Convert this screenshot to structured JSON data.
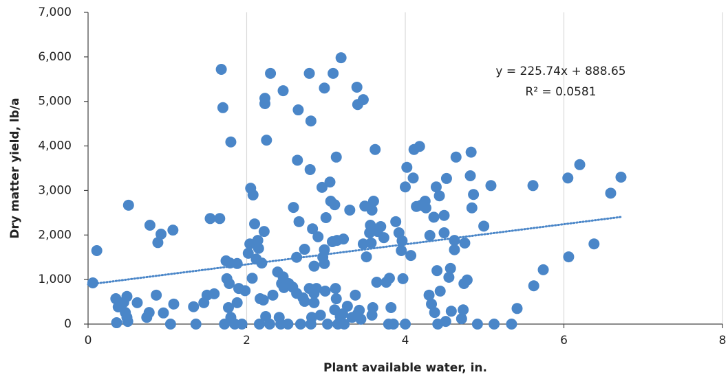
{
  "chart_data": {
    "type": "scatter",
    "x_label": "Plant available water, in.",
    "y_label": "Dry matter yield, lb/a",
    "color": "#4a86c8",
    "xlim": [
      0,
      8
    ],
    "xticks": [
      0,
      2,
      4,
      6,
      8
    ],
    "ylim": [
      0,
      7000
    ],
    "yticks": [
      0,
      {
        "value": 1000,
        "label": "1,000"
      },
      {
        "value": 2000,
        "label": "2,000"
      },
      {
        "value": 3000,
        "label": "3,000"
      },
      {
        "value": 4000,
        "label": "4,000"
      },
      {
        "value": 5000,
        "label": "5,000"
      },
      {
        "value": 6000,
        "label": "6,000"
      },
      {
        "value": 7000,
        "label": "7,000"
      }
    ],
    "grid": "x",
    "trendline": {
      "equation": "y = 225.74x + 888.65",
      "r_squared": "R² = 0.0581",
      "slope": 225.74,
      "intercept": 888.65
    },
    "x": [
      0.06,
      0.11,
      0.35,
      0.36,
      0.38,
      0.45,
      0.47,
      0.49,
      0.49,
      0.51,
      0.5,
      0.62,
      0.74,
      0.77,
      0.78,
      0.86,
      0.88,
      0.92,
      0.95,
      1.04,
      1.07,
      1.08,
      1.33,
      1.36,
      1.46,
      1.5,
      1.54,
      1.59,
      1.66,
      1.68,
      1.7,
      1.72,
      1.74,
      1.75,
      1.77,
      1.78,
      1.79,
      1.8,
      1.8,
      1.85,
      1.88,
      1.88,
      1.9,
      1.94,
      1.98,
      2.02,
      2.04,
      2.05,
      2.08,
      2.07,
      2.1,
      2.12,
      2.14,
      2.15,
      2.16,
      2.17,
      2.19,
      2.21,
      2.22,
      2.23,
      2.23,
      2.24,
      2.25,
      2.29,
      2.3,
      2.33,
      2.39,
      2.41,
      2.43,
      2.44,
      2.46,
      2.46,
      2.47,
      2.52,
      2.53,
      2.58,
      2.59,
      2.63,
      2.63,
      2.64,
      2.65,
      2.66,
      2.68,
      2.71,
      2.73,
      2.73,
      2.79,
      2.79,
      2.8,
      2.81,
      2.81,
      2.82,
      2.83,
      2.85,
      2.85,
      2.85,
      2.88,
      2.9,
      2.93,
      2.95,
      2.96,
      2.98,
      2.98,
      2.98,
      2.99,
      3.0,
      3.02,
      3.05,
      3.06,
      3.08,
      3.09,
      3.11,
      3.11,
      3.12,
      3.13,
      3.13,
      3.14,
      3.15,
      3.18,
      3.19,
      3.21,
      3.22,
      3.23,
      3.27,
      3.3,
      3.33,
      3.37,
      3.39,
      3.4,
      3.4,
      3.42,
      3.44,
      3.47,
      3.47,
      3.49,
      3.51,
      3.55,
      3.56,
      3.57,
      3.58,
      3.58,
      3.59,
      3.6,
      3.62,
      3.64,
      3.65,
      3.69,
      3.73,
      3.76,
      3.79,
      3.8,
      3.82,
      3.85,
      3.88,
      3.92,
      3.95,
      3.96,
      3.97,
      4.0,
      4.0,
      4.02,
      4.07,
      4.1,
      4.11,
      4.14,
      4.18,
      4.2,
      4.25,
      4.26,
      4.3,
      4.31,
      4.33,
      4.36,
      4.37,
      4.39,
      4.4,
      4.41,
      4.43,
      4.44,
      4.49,
      4.49,
      4.51,
      4.52,
      4.55,
      4.57,
      4.58,
      4.62,
      4.62,
      4.64,
      4.71,
      4.73,
      4.74,
      4.75,
      4.78,
      4.82,
      4.83,
      4.84,
      4.86,
      4.91,
      4.99,
      5.08,
      5.12,
      5.34,
      5.41,
      5.61,
      5.62,
      5.74,
      6.05,
      6.06,
      6.2,
      6.38,
      6.59,
      6.72
    ],
    "values": [
      925,
      1650,
      570,
      30,
      385,
      490,
      260,
      150,
      620,
      2670,
      60,
      480,
      150,
      260,
      2220,
      650,
      1830,
      2020,
      250,
      0,
      2110,
      450,
      390,
      0,
      480,
      650,
      2370,
      680,
      2370,
      5720,
      4860,
      0,
      1420,
      1020,
      370,
      910,
      1370,
      4090,
      150,
      0,
      1360,
      480,
      800,
      0,
      750,
      1590,
      1800,
      3050,
      2900,
      1030,
      2250,
      1460,
      1880,
      1700,
      0,
      570,
      1370,
      540,
      2080,
      5070,
      4950,
      170,
      4130,
      0,
      5630,
      650,
      1170,
      150,
      0,
      910,
      5240,
      1060,
      820,
      0,
      910,
      830,
      2620,
      1500,
      690,
      3680,
      4810,
      2300,
      0,
      590,
      510,
      1680,
      800,
      5630,
      3470,
      0,
      4560,
      150,
      2140,
      480,
      1300,
      690,
      800,
      1960,
      200,
      3070,
      1500,
      1360,
      1670,
      5300,
      740,
      2390,
      0,
      3190,
      2760,
      1850,
      5630,
      2680,
      320,
      800,
      3750,
      570,
      1880,
      0,
      170,
      5980,
      230,
      1910,
      0,
      400,
      2560,
      150,
      650,
      5320,
      4930,
      230,
      310,
      110,
      5040,
      1800,
      2650,
      1510,
      2050,
      2220,
      1820,
      200,
      2560,
      370,
      2760,
      3920,
      940,
      2080,
      2190,
      1940,
      940,
      0,
      1030,
      370,
      0,
      2300,
      2050,
      1650,
      1870,
      1020,
      0,
      3080,
      3520,
      1540,
      3280,
      3920,
      2640,
      3990,
      2670,
      2760,
      2610,
      650,
      1990,
      450,
      2400,
      260,
      3080,
      1200,
      0,
      2880,
      740,
      2050,
      2440,
      60,
      3270,
      1050,
      1250,
      290,
      1880,
      1670,
      3750,
      120,
      320,
      910,
      1820,
      990,
      3330,
      3860,
      2610,
      2910,
      0,
      2200,
      3110,
      0,
      0,
      350,
      3110,
      860,
      1220,
      3280,
      1510,
      3580,
      1800,
      2940,
      3300
    ]
  }
}
